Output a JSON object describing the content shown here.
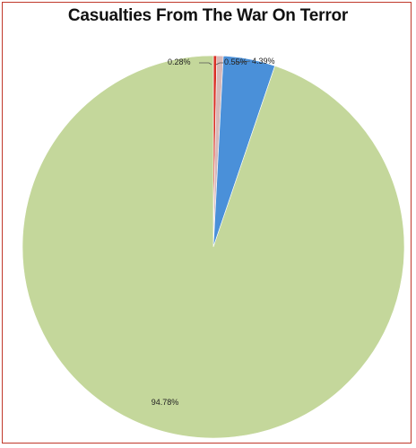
{
  "chart_data": {
    "type": "pie",
    "title": "Casualties From The War On Terror",
    "slices": [
      {
        "label": "0.28%",
        "value": 0.28,
        "color": "#d93025"
      },
      {
        "label": "0.55%",
        "value": 0.55,
        "color": "#d8b8b8"
      },
      {
        "label": "4.39%",
        "value": 4.39,
        "color": "#4a90d9"
      },
      {
        "label": "94.78%",
        "value": 94.78,
        "color": "#c4d79b"
      }
    ],
    "start_angle_deg": 0,
    "direction": "clockwise",
    "legend": "none"
  }
}
